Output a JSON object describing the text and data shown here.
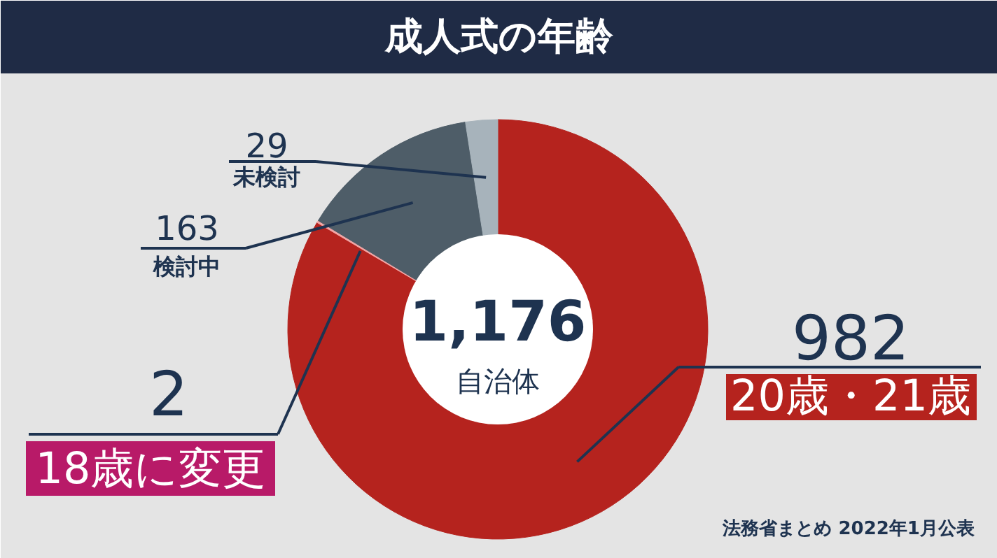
{
  "chart_data": {
    "type": "donut",
    "title": "成人式の年齢",
    "categories": [
      "20歳・21歳",
      "18歳に変更",
      "検討中",
      "未検討"
    ],
    "values": [
      982,
      2,
      163,
      29
    ],
    "colors": [
      "#b5231e",
      "#f2a6a6",
      "#4e5d68",
      "#a7b3bb"
    ],
    "data_labels": true,
    "annotations": [
      "1,176",
      "自治体",
      "法務省まとめ  2022年1月公表"
    ]
  }
}
